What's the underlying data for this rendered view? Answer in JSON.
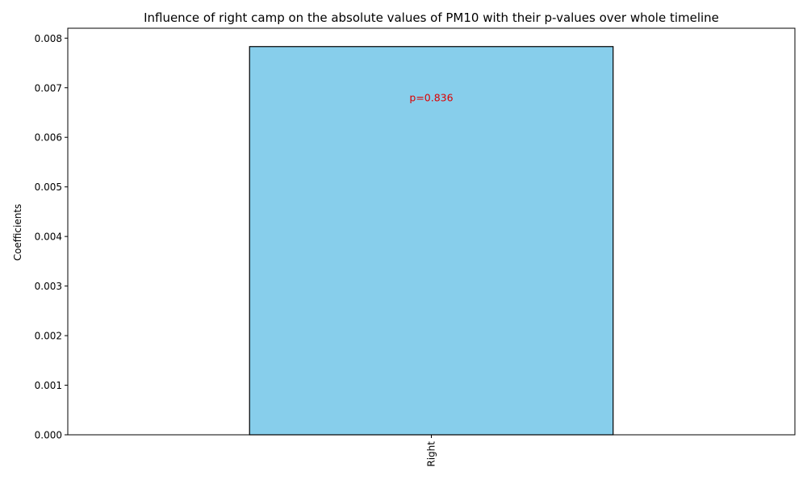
{
  "chart_data": {
    "type": "bar",
    "title": "Influence of right camp on the absolute values of PM10 with their p-values over whole timeline",
    "xlabel": "",
    "ylabel": "Coefficients",
    "categories": [
      "Right"
    ],
    "values": [
      0.00783
    ],
    "ylim": [
      0,
      0.0082
    ],
    "yticks": [
      0.0,
      0.001,
      0.002,
      0.003,
      0.004,
      0.005,
      0.006,
      0.007,
      0.008
    ],
    "ytick_labels": [
      "0.000",
      "0.001",
      "0.002",
      "0.003",
      "0.004",
      "0.005",
      "0.006",
      "0.007",
      "0.008"
    ],
    "annotations": [
      {
        "category": "Right",
        "text": "p=0.836",
        "y": 0.0068,
        "color": "#dd0000"
      }
    ],
    "bar_color": "#87ceeb",
    "bar_edge_color": "#000000",
    "grid": false,
    "legend": "none"
  }
}
